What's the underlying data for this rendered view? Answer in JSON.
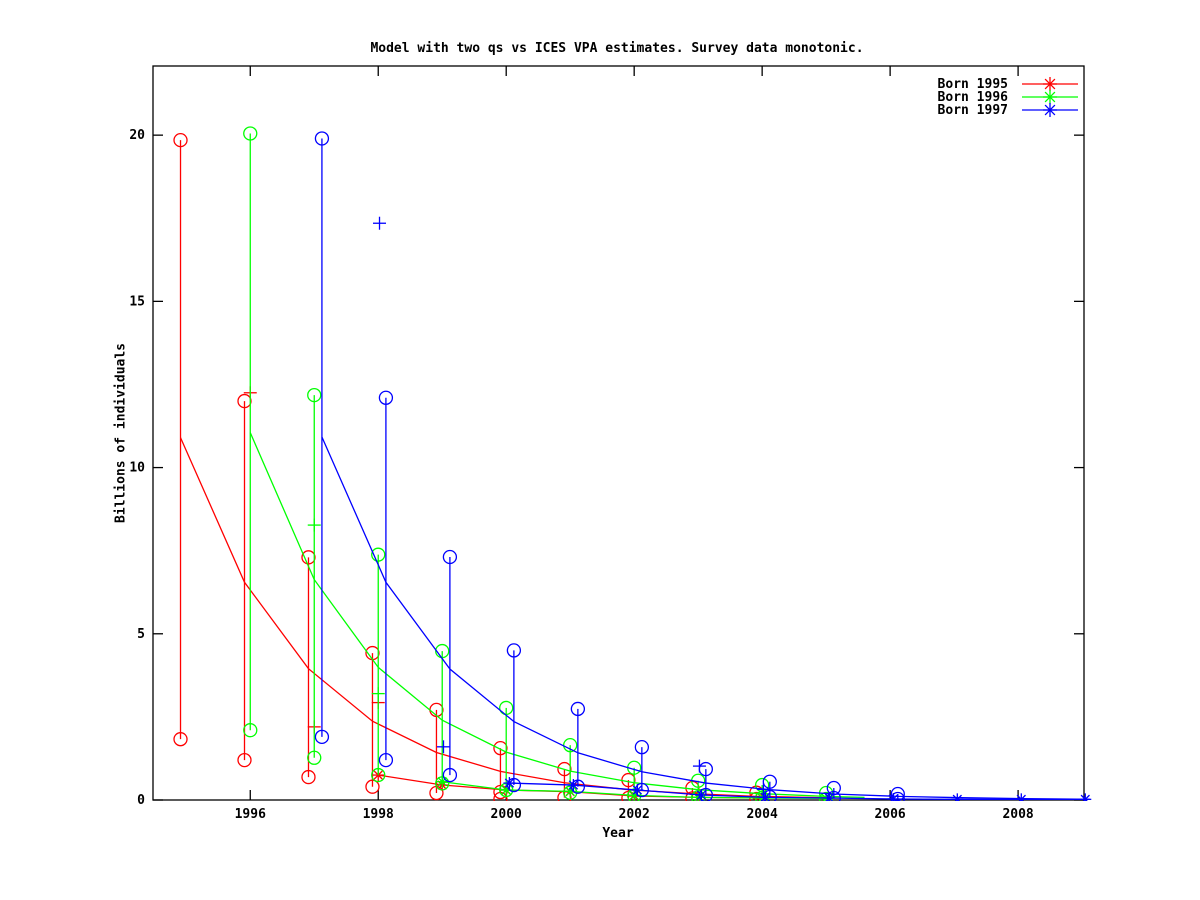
{
  "chart_data": {
    "type": "line",
    "title": "Model with two qs vs ICES VPA estimates. Survey data monotonic.",
    "xlabel": "Year",
    "ylabel": "Billions of individuals",
    "x_range": [
      1994.48,
      2009.03
    ],
    "y_range": [
      0,
      22.08
    ],
    "x_ticks": [
      1996,
      1998,
      2000,
      2002,
      2004,
      2006,
      2008
    ],
    "y_ticks": [
      0,
      5,
      10,
      15,
      20
    ],
    "grid": false,
    "legend_position": "top-right",
    "legend": [
      {
        "label": "Born 1995",
        "color": "#ff0000"
      },
      {
        "label": "Born 1996",
        "color": "#00ff00"
      },
      {
        "label": "Born 1997",
        "color": "#0000ff"
      }
    ],
    "series": [
      {
        "name": "Born 1995",
        "color": "#ff0000",
        "bar_offset": -0.09,
        "curve_offset": -0.09,
        "plus_offset": 0,
        "star_offset": 0,
        "model_curve": {
          "x": [
            1995,
            1996,
            1997,
            1998,
            1999,
            2000,
            2001,
            2002,
            2003,
            2004,
            2005,
            2005.3
          ],
          "y": [
            10.9,
            6.55,
            3.95,
            2.37,
            1.43,
            0.86,
            0.52,
            0.31,
            0.19,
            0.11,
            0.07,
            0.06
          ]
        },
        "error_bars": [
          {
            "year": 1995,
            "hi": 19.85,
            "lo": 1.83
          },
          {
            "year": 1996,
            "hi": 12.0,
            "lo": 1.2
          },
          {
            "year": 1997,
            "hi": 7.3,
            "lo": 0.69
          },
          {
            "year": 1998,
            "hi": 4.42,
            "lo": 0.4
          },
          {
            "year": 1999,
            "hi": 2.71,
            "lo": 0.21
          },
          {
            "year": 2000,
            "hi": 1.56,
            "lo": 0.24
          },
          {
            "year": 2001,
            "hi": 0.93,
            "lo": 0.07
          },
          {
            "year": 2002,
            "hi": 0.6,
            "lo": 0.06
          },
          {
            "year": 2003,
            "hi": 0.36,
            "lo": 0.05
          },
          {
            "year": 2004,
            "hi": 0.22,
            "lo": 0.03
          }
        ],
        "extra_circles": [
          {
            "year": 2000,
            "value": 0.03
          }
        ],
        "plus_markers": [
          {
            "year": 1996,
            "value": 12.25
          },
          {
            "year": 1997,
            "value": 2.2
          },
          {
            "year": 1998,
            "value": 2.93
          }
        ],
        "star_line": {
          "x": [
            1998,
            1999,
            2000,
            2001,
            2002,
            2003,
            2004
          ],
          "y": [
            0.75,
            0.45,
            0.3,
            0.25,
            0.12,
            0.08,
            0.06
          ]
        }
      },
      {
        "name": "Born 1996",
        "color": "#00ff00",
        "bar_offset": 0,
        "curve_offset": 0,
        "plus_offset": 0,
        "star_offset": 0,
        "model_curve": {
          "x": [
            1996,
            1997,
            1998,
            1999,
            2000,
            2001,
            2002,
            2003,
            2004,
            2005,
            2005.6
          ],
          "y": [
            11.05,
            6.63,
            3.99,
            2.4,
            1.44,
            0.87,
            0.52,
            0.31,
            0.19,
            0.11,
            0.08
          ]
        },
        "error_bars": [
          {
            "year": 1996,
            "hi": 20.05,
            "lo": 2.1
          },
          {
            "year": 1997,
            "hi": 12.18,
            "lo": 1.27
          },
          {
            "year": 1998,
            "hi": 7.38,
            "lo": 0.75
          },
          {
            "year": 1999,
            "hi": 4.48,
            "lo": 0.5
          },
          {
            "year": 2000,
            "hi": 2.77,
            "lo": 0.3
          },
          {
            "year": 2001,
            "hi": 1.65,
            "lo": 0.22
          },
          {
            "year": 2002,
            "hi": 0.97,
            "lo": 0.13
          },
          {
            "year": 2003,
            "hi": 0.58,
            "lo": 0.08
          },
          {
            "year": 2004,
            "hi": 0.45,
            "lo": 0.06
          },
          {
            "year": 2005,
            "hi": 0.21,
            "lo": 0.03
          }
        ],
        "extra_circles": [],
        "plus_markers": [
          {
            "year": 1997,
            "value": 8.27
          },
          {
            "year": 1998,
            "value": 3.2
          }
        ],
        "star_line": {
          "x": [
            1999,
            2000,
            2001,
            2002,
            2003,
            2004,
            2005
          ],
          "y": [
            0.55,
            0.3,
            0.26,
            0.14,
            0.08,
            0.06,
            0.05
          ]
        }
      },
      {
        "name": "Born 1997",
        "color": "#0000ff",
        "bar_offset": 0.12,
        "curve_offset": 0.12,
        "plus_offset": 0.02,
        "star_offset": 0.05,
        "model_curve": {
          "x": [
            1997,
            1998,
            1999,
            2000,
            2001,
            2002,
            2003,
            2004,
            2005,
            2006,
            2007,
            2008,
            2009
          ],
          "y": [
            10.92,
            6.55,
            3.94,
            2.36,
            1.42,
            0.85,
            0.51,
            0.31,
            0.18,
            0.11,
            0.07,
            0.04,
            0.02
          ]
        },
        "error_bars": [
          {
            "year": 1997,
            "hi": 19.9,
            "lo": 1.9
          },
          {
            "year": 1998,
            "hi": 12.1,
            "lo": 1.2
          },
          {
            "year": 1999,
            "hi": 7.31,
            "lo": 0.75
          },
          {
            "year": 2000,
            "hi": 4.5,
            "lo": 0.45
          },
          {
            "year": 2001,
            "hi": 2.74,
            "lo": 0.4
          },
          {
            "year": 2002,
            "hi": 1.59,
            "lo": 0.3
          },
          {
            "year": 2003,
            "hi": 0.93,
            "lo": 0.15
          },
          {
            "year": 2004,
            "hi": 0.55,
            "lo": 0.09
          },
          {
            "year": 2005,
            "hi": 0.36,
            "lo": 0.06
          },
          {
            "year": 2006,
            "hi": 0.18,
            "lo": 0.03
          }
        ],
        "extra_circles": [],
        "plus_markers": [
          {
            "year": 1998,
            "value": 17.35
          },
          {
            "year": 1999,
            "value": 1.6
          },
          {
            "year": 2003,
            "value": 1.02
          },
          {
            "year": 2004,
            "value": 0.32
          }
        ],
        "star_line": {
          "x": [
            2000,
            2001,
            2002,
            2003,
            2004,
            2005,
            2006,
            2007,
            2008,
            2009
          ],
          "y": [
            0.51,
            0.45,
            0.3,
            0.15,
            0.08,
            0.06,
            0.03,
            0.02,
            0.02,
            0.02
          ]
        }
      }
    ]
  }
}
